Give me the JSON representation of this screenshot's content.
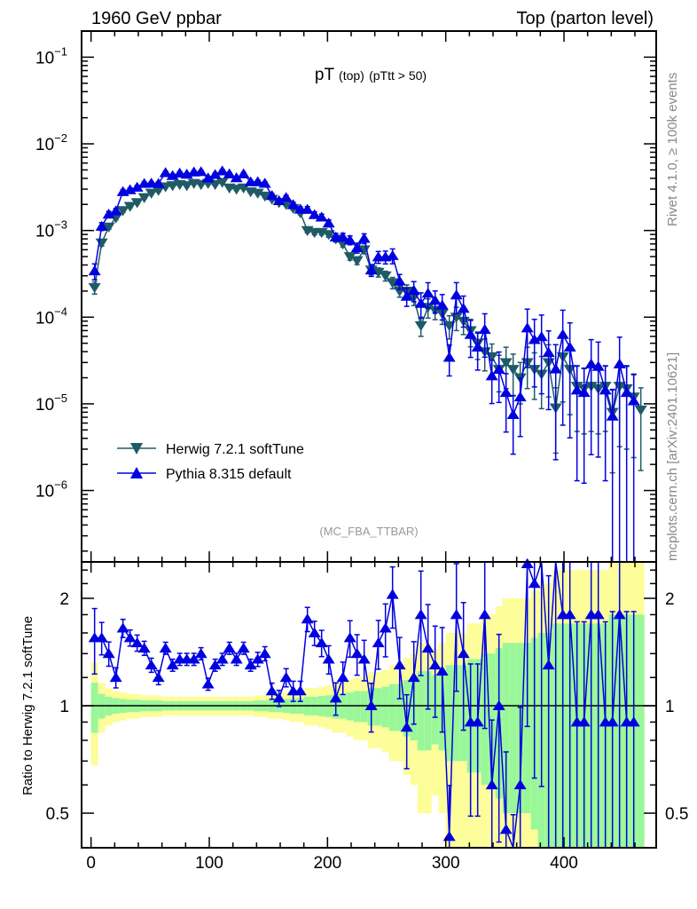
{
  "chart_data": {
    "type": "line",
    "header_left": "1960 GeV ppbar",
    "header_right": "Top (parton level)",
    "title_main": "pT",
    "title_sub1": "(top)",
    "title_sub2": "(pTtt > 50)",
    "side_label_top": "Rivet 4.1.0, ≥ 100k events",
    "side_label_bottom": "mcplots.cern.ch [arXiv:2401.10621]",
    "analysis": "(MC_FBA_TTBAR)",
    "ratio_ylabel": "Ratio to Herwig 7.2.1 softTune",
    "xlim": [
      -8,
      478
    ],
    "ylim": [
      1.5e-07,
      0.2
    ],
    "ratio_ylim": [
      0.4,
      2.53
    ],
    "xticks": [
      "0",
      "100",
      "200",
      "300",
      "400"
    ],
    "yticks": [
      {
        "base": "10",
        "exp": "−1"
      },
      {
        "base": "10",
        "exp": "−2"
      },
      {
        "base": "10",
        "exp": "−3"
      },
      {
        "base": "10",
        "exp": "−4"
      },
      {
        "base": "10",
        "exp": "−5"
      },
      {
        "base": "10",
        "exp": "−6"
      }
    ],
    "ratio_yticks": [
      "2",
      "1",
      "0.5"
    ],
    "colors": {
      "herwig": "#1f5b66",
      "pythia": "#0000e0",
      "band1": "#99f799",
      "band2": "#fdfd99"
    },
    "legend": [
      "Herwig 7.2.1 softTune",
      "Pythia 8.315 default"
    ],
    "bin_width": 6,
    "x": [
      3,
      9,
      15,
      21,
      27,
      33,
      39,
      45,
      51,
      57,
      63,
      69,
      75,
      81,
      87,
      93,
      99,
      105,
      111,
      117,
      123,
      129,
      135,
      141,
      147,
      153,
      159,
      165,
      171,
      177,
      183,
      189,
      195,
      201,
      207,
      213,
      219,
      225,
      231,
      237,
      243,
      249,
      255,
      261,
      267,
      273,
      279,
      285,
      291,
      297,
      303,
      309,
      315,
      321,
      327,
      333,
      339,
      345,
      351,
      357,
      363,
      369,
      375,
      381,
      387,
      393,
      399,
      405,
      411,
      417,
      423,
      429,
      435,
      441,
      447,
      453,
      459,
      465
    ],
    "herwig": [
      0.00022,
      0.00072,
      0.0011,
      0.0014,
      0.0017,
      0.0019,
      0.0021,
      0.0024,
      0.0027,
      0.0029,
      0.0032,
      0.0033,
      0.0034,
      0.0033,
      0.0035,
      0.0034,
      0.0035,
      0.0034,
      0.0036,
      0.0031,
      0.003,
      0.0031,
      0.0028,
      0.0027,
      0.0025,
      0.0023,
      0.0021,
      0.002,
      0.0018,
      0.0016,
      0.001,
      0.00095,
      0.00095,
      0.0009,
      0.0008,
      0.0007,
      0.0005,
      0.00045,
      0.0006,
      0.00035,
      0.00033,
      0.0003,
      0.00025,
      0.0002,
      0.0002,
      0.00017,
      8e-05,
      0.00013,
      0.00012,
      0.00011,
      8e-05,
      0.0001,
      9e-05,
      7e-05,
      5e-05,
      4e-05,
      3.5e-05,
      2.5e-05,
      3e-05,
      2.5e-05,
      2e-05,
      3e-05,
      2.5e-05,
      2.2e-05,
      3e-05,
      9e-06,
      3.5e-05,
      2.5e-05,
      1.6e-05,
      1.5e-05,
      1.6e-05,
      1.5e-05,
      1.6e-05,
      8e-06,
      1.6e-05,
      1.5e-05,
      1.2e-05,
      8.5e-06
    ],
    "pythia_ratio": [
      1.55,
      1.55,
      1.4,
      1.2,
      1.65,
      1.55,
      1.5,
      1.45,
      1.3,
      1.2,
      1.45,
      1.3,
      1.35,
      1.35,
      1.35,
      1.4,
      1.15,
      1.3,
      1.35,
      1.45,
      1.35,
      1.45,
      1.3,
      1.35,
      1.4,
      1.1,
      1.05,
      1.2,
      1.1,
      1.1,
      1.75,
      1.6,
      1.5,
      1.35,
      1.05,
      1.2,
      1.55,
      1.4,
      1.35,
      1.0,
      1.5,
      1.65,
      2.05,
      1.3,
      0.87,
      1.2,
      1.8,
      1.45,
      1.3,
      1.25,
      0.43,
      1.8,
      1.4,
      0.9,
      0.9,
      1.8,
      0.6,
      1.0,
      0.45,
      0.3,
      0.6,
      2.5,
      2.2,
      2.7,
      1.3,
      2.8,
      1.8,
      1.8,
      0.9,
      0.9,
      1.8,
      1.8,
      0.9,
      0.9,
      1.8,
      0.9,
      0.9,
      0
    ],
    "herwig_rel_err": [
      0.16,
      0.08,
      0.06,
      0.05,
      0.045,
      0.04,
      0.04,
      0.035,
      0.035,
      0.035,
      0.03,
      0.03,
      0.03,
      0.03,
      0.03,
      0.03,
      0.03,
      0.03,
      0.03,
      0.03,
      0.03,
      0.03,
      0.03,
      0.035,
      0.035,
      0.04,
      0.04,
      0.045,
      0.05,
      0.05,
      0.06,
      0.06,
      0.065,
      0.07,
      0.08,
      0.08,
      0.09,
      0.1,
      0.1,
      0.12,
      0.12,
      0.13,
      0.15,
      0.15,
      0.18,
      0.2,
      0.25,
      0.25,
      0.22,
      0.25,
      0.3,
      0.3,
      0.3,
      0.35,
      0.35,
      0.4,
      0.4,
      0.45,
      0.5,
      0.5,
      0.5,
      0.5,
      0.55,
      0.6,
      0.6,
      0.7,
      0.7,
      0.7,
      0.7,
      0.7,
      0.7,
      0.7,
      0.7,
      0.8,
      0.8,
      0.8,
      0.8,
      0.8
    ],
    "pythia_err_scale": 1.3
  }
}
